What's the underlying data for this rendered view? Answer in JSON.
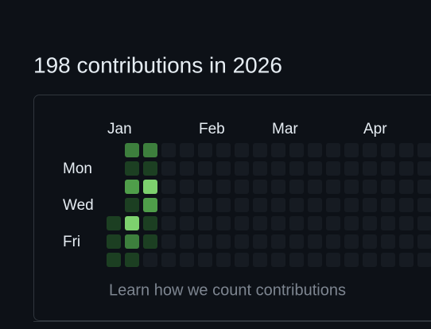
{
  "header": {
    "title": "198 contributions in 2026"
  },
  "calendar": {
    "months": [
      "Jan",
      "Feb",
      "Mar",
      "Apr"
    ],
    "days": [
      "Mon",
      "Wed",
      "Fri"
    ],
    "level_colors": [
      "#161b22",
      "#1c3f22",
      "#3d7f3d",
      "#4f9e4a",
      "#7dd16e"
    ],
    "weeks": [
      [
        null,
        null,
        null,
        null,
        1,
        1,
        1
      ],
      [
        2,
        1,
        3,
        1,
        4,
        2,
        1
      ],
      [
        2,
        1,
        4,
        3,
        1,
        1,
        0
      ],
      [
        0,
        0,
        0,
        0,
        0,
        0,
        0
      ],
      [
        0,
        0,
        0,
        0,
        0,
        0,
        0
      ],
      [
        0,
        0,
        0,
        0,
        0,
        0,
        0
      ],
      [
        0,
        0,
        0,
        0,
        0,
        0,
        0
      ],
      [
        0,
        0,
        0,
        0,
        0,
        0,
        0
      ],
      [
        0,
        0,
        0,
        0,
        0,
        0,
        0
      ],
      [
        0,
        0,
        0,
        0,
        0,
        0,
        0
      ],
      [
        0,
        0,
        0,
        0,
        0,
        0,
        0
      ],
      [
        0,
        0,
        0,
        0,
        0,
        0,
        0
      ],
      [
        0,
        0,
        0,
        0,
        0,
        0,
        0
      ],
      [
        0,
        0,
        0,
        0,
        0,
        0,
        0
      ],
      [
        0,
        0,
        0,
        0,
        0,
        0,
        0
      ],
      [
        0,
        0,
        0,
        0,
        0,
        0,
        0
      ],
      [
        0,
        0,
        0,
        0,
        0,
        0,
        0
      ],
      [
        0,
        0,
        0,
        0,
        0,
        0,
        0
      ]
    ]
  },
  "footer": {
    "link": "Learn how we count contributions"
  }
}
